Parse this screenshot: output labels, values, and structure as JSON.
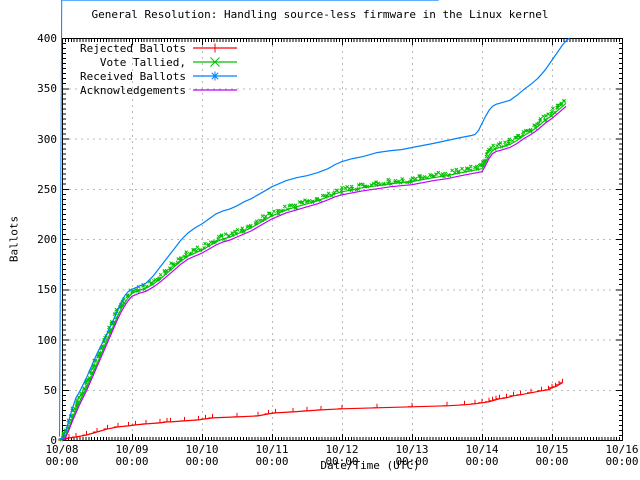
{
  "title": "General Resolution: Handling source-less firmware in the Linux kernel",
  "x_axis": {
    "label": "Date/Time (UTC)",
    "ticks": [
      {
        "date": "10/08",
        "time": "00:00"
      },
      {
        "date": "10/09",
        "time": "00:00"
      },
      {
        "date": "10/10",
        "time": "00:00"
      },
      {
        "date": "10/11",
        "time": "00:00"
      },
      {
        "date": "10/12",
        "time": "00:00"
      },
      {
        "date": "10/13",
        "time": "00:00"
      },
      {
        "date": "10/14",
        "time": "00:00"
      },
      {
        "date": "10/15",
        "time": "00:00"
      },
      {
        "date": "10/16",
        "time": "00:00"
      }
    ]
  },
  "y_axis": {
    "label": "Ballots",
    "ticks": [
      0,
      50,
      100,
      150,
      200,
      250,
      300,
      350,
      400
    ]
  },
  "colors": {
    "grid": "#b9b9b9",
    "border": "#000000",
    "background": "#ffffff"
  },
  "chart_data": {
    "type": "line",
    "title": "General Resolution: Handling source-less firmware in the Linux kernel",
    "xlabel": "Date/Time (UTC)",
    "ylabel": "Ballots",
    "x_unit": "days since 10/08 00:00 UTC",
    "xlim_days": [
      0,
      8
    ],
    "ylim": [
      0,
      400
    ],
    "grid": true,
    "legend_position": "top-left",
    "series": [
      {
        "name": "Rejected Ballots",
        "color": "#ff0000",
        "marker": "plus",
        "dense_markers": false,
        "points": [
          [
            0,
            0
          ],
          [
            0.1,
            2
          ],
          [
            0.2,
            3
          ],
          [
            0.35,
            5
          ],
          [
            0.5,
            8
          ],
          [
            0.65,
            11
          ],
          [
            0.8,
            13
          ],
          [
            0.95,
            14
          ],
          [
            1.05,
            15
          ],
          [
            1.2,
            16
          ],
          [
            1.4,
            17
          ],
          [
            1.5,
            18
          ],
          [
            1.55,
            18
          ],
          [
            1.75,
            19
          ],
          [
            1.95,
            20
          ],
          [
            2.05,
            21
          ],
          [
            2.15,
            22
          ],
          [
            2.5,
            23
          ],
          [
            2.8,
            24
          ],
          [
            2.95,
            26
          ],
          [
            3.05,
            27
          ],
          [
            3.3,
            28
          ],
          [
            3.5,
            29
          ],
          [
            3.7,
            30
          ],
          [
            4.0,
            31
          ],
          [
            4.5,
            32
          ],
          [
            5.0,
            33
          ],
          [
            5.5,
            34
          ],
          [
            5.75,
            35
          ],
          [
            5.9,
            36
          ],
          [
            6.0,
            37
          ],
          [
            6.1,
            38
          ],
          [
            6.15,
            39
          ],
          [
            6.2,
            40
          ],
          [
            6.25,
            41
          ],
          [
            6.35,
            42
          ],
          [
            6.45,
            44
          ],
          [
            6.55,
            45
          ],
          [
            6.7,
            47
          ],
          [
            6.85,
            49
          ],
          [
            6.95,
            50
          ],
          [
            7.0,
            52
          ],
          [
            7.05,
            53
          ],
          [
            7.1,
            55
          ],
          [
            7.15,
            57
          ]
        ]
      },
      {
        "name": "Vote Tallied,",
        "color": "#00c000",
        "marker": "cross",
        "dense_markers": true,
        "points": [
          [
            0,
            0
          ],
          [
            0.05,
            4
          ],
          [
            0.1,
            12
          ],
          [
            0.15,
            22
          ],
          [
            0.2,
            30
          ],
          [
            0.25,
            38
          ],
          [
            0.3,
            45
          ],
          [
            0.35,
            52
          ],
          [
            0.4,
            60
          ],
          [
            0.45,
            68
          ],
          [
            0.5,
            76
          ],
          [
            0.55,
            84
          ],
          [
            0.6,
            92
          ],
          [
            0.65,
            100
          ],
          [
            0.7,
            108
          ],
          [
            0.75,
            116
          ],
          [
            0.8,
            124
          ],
          [
            0.85,
            131
          ],
          [
            0.9,
            137
          ],
          [
            0.95,
            142
          ],
          [
            1.0,
            146
          ],
          [
            1.1,
            149
          ],
          [
            1.2,
            151
          ],
          [
            1.3,
            155
          ],
          [
            1.4,
            160
          ],
          [
            1.5,
            166
          ],
          [
            1.6,
            172
          ],
          [
            1.7,
            178
          ],
          [
            1.8,
            183
          ],
          [
            1.9,
            186
          ],
          [
            2.0,
            189
          ],
          [
            2.1,
            193
          ],
          [
            2.2,
            197
          ],
          [
            2.3,
            200
          ],
          [
            2.4,
            202
          ],
          [
            2.5,
            205
          ],
          [
            2.6,
            208
          ],
          [
            2.7,
            211
          ],
          [
            2.8,
            215
          ],
          [
            2.9,
            219
          ],
          [
            3.0,
            223
          ],
          [
            3.1,
            226
          ],
          [
            3.2,
            229
          ],
          [
            3.35,
            232
          ],
          [
            3.5,
            235
          ],
          [
            3.65,
            238
          ],
          [
            3.8,
            242
          ],
          [
            3.9,
            245
          ],
          [
            4.0,
            247
          ],
          [
            4.15,
            249
          ],
          [
            4.3,
            251
          ],
          [
            4.5,
            253
          ],
          [
            4.7,
            255
          ],
          [
            4.85,
            256
          ],
          [
            5.0,
            257
          ],
          [
            5.15,
            259
          ],
          [
            5.3,
            261
          ],
          [
            5.5,
            263
          ],
          [
            5.7,
            266
          ],
          [
            5.85,
            268
          ],
          [
            6.0,
            270
          ],
          [
            6.05,
            276
          ],
          [
            6.1,
            283
          ],
          [
            6.15,
            288
          ],
          [
            6.2,
            290
          ],
          [
            6.3,
            292
          ],
          [
            6.4,
            294
          ],
          [
            6.5,
            298
          ],
          [
            6.6,
            303
          ],
          [
            6.7,
            307
          ],
          [
            6.8,
            312
          ],
          [
            6.9,
            318
          ],
          [
            7.0,
            323
          ],
          [
            7.05,
            326
          ],
          [
            7.1,
            329
          ],
          [
            7.15,
            332
          ],
          [
            7.2,
            335
          ]
        ]
      },
      {
        "name": "Received Ballots",
        "color": "#0080ff",
        "marker": "star",
        "dense_markers": true,
        "points": [
          [
            0,
            0
          ],
          [
            0.05,
            8
          ],
          [
            0.1,
            20
          ],
          [
            0.15,
            32
          ],
          [
            0.2,
            42
          ],
          [
            0.25,
            48
          ],
          [
            0.3,
            55
          ],
          [
            0.35,
            62
          ],
          [
            0.4,
            70
          ],
          [
            0.45,
            78
          ],
          [
            0.5,
            86
          ],
          [
            0.55,
            93
          ],
          [
            0.6,
            100
          ],
          [
            0.65,
            107
          ],
          [
            0.7,
            114
          ],
          [
            0.75,
            122
          ],
          [
            0.8,
            130
          ],
          [
            0.85,
            138
          ],
          [
            0.9,
            144
          ],
          [
            0.95,
            148
          ],
          [
            1.0,
            150
          ],
          [
            1.1,
            153
          ],
          [
            1.2,
            156
          ],
          [
            1.3,
            163
          ],
          [
            1.4,
            172
          ],
          [
            1.5,
            181
          ],
          [
            1.6,
            190
          ],
          [
            1.7,
            199
          ],
          [
            1.8,
            206
          ],
          [
            1.9,
            211
          ],
          [
            2.0,
            215
          ],
          [
            2.1,
            220
          ],
          [
            2.2,
            225
          ],
          [
            2.3,
            228
          ],
          [
            2.4,
            230
          ],
          [
            2.5,
            233
          ],
          [
            2.6,
            237
          ],
          [
            2.7,
            240
          ],
          [
            2.8,
            244
          ],
          [
            2.9,
            248
          ],
          [
            3.0,
            252
          ],
          [
            3.1,
            255
          ],
          [
            3.2,
            258
          ],
          [
            3.35,
            261
          ],
          [
            3.5,
            263
          ],
          [
            3.65,
            266
          ],
          [
            3.8,
            270
          ],
          [
            3.9,
            274
          ],
          [
            4.0,
            277
          ],
          [
            4.15,
            280
          ],
          [
            4.3,
            282
          ],
          [
            4.5,
            286
          ],
          [
            4.7,
            288
          ],
          [
            4.85,
            289
          ],
          [
            5.0,
            291
          ],
          [
            5.15,
            293
          ],
          [
            5.3,
            295
          ],
          [
            5.5,
            298
          ],
          [
            5.7,
            301
          ],
          [
            5.85,
            303
          ],
          [
            5.9,
            304
          ],
          [
            5.95,
            308
          ],
          [
            6.0,
            315
          ],
          [
            6.05,
            322
          ],
          [
            6.1,
            328
          ],
          [
            6.15,
            332
          ],
          [
            6.2,
            334
          ],
          [
            6.3,
            336
          ],
          [
            6.4,
            338
          ],
          [
            6.5,
            343
          ],
          [
            6.6,
            349
          ],
          [
            6.7,
            354
          ],
          [
            6.8,
            360
          ],
          [
            6.9,
            368
          ],
          [
            7.0,
            378
          ],
          [
            7.05,
            383
          ],
          [
            7.1,
            388
          ],
          [
            7.15,
            393
          ],
          [
            7.2,
            397
          ],
          [
            7.25,
            400
          ]
        ]
      },
      {
        "name": "Acknowledgements",
        "color": "#c000ff",
        "marker": "none",
        "dense_markers": false,
        "points": [
          [
            0,
            0
          ],
          [
            0.05,
            2
          ],
          [
            0.1,
            10
          ],
          [
            0.15,
            19
          ],
          [
            0.2,
            27
          ],
          [
            0.25,
            35
          ],
          [
            0.3,
            42
          ],
          [
            0.35,
            49
          ],
          [
            0.4,
            57
          ],
          [
            0.45,
            65
          ],
          [
            0.5,
            73
          ],
          [
            0.55,
            81
          ],
          [
            0.6,
            89
          ],
          [
            0.65,
            97
          ],
          [
            0.7,
            105
          ],
          [
            0.75,
            113
          ],
          [
            0.8,
            121
          ],
          [
            0.85,
            128
          ],
          [
            0.9,
            134
          ],
          [
            0.95,
            139
          ],
          [
            1.0,
            143
          ],
          [
            1.1,
            146
          ],
          [
            1.2,
            148
          ],
          [
            1.3,
            152
          ],
          [
            1.4,
            157
          ],
          [
            1.5,
            163
          ],
          [
            1.6,
            169
          ],
          [
            1.7,
            175
          ],
          [
            1.8,
            180
          ],
          [
            1.9,
            183
          ],
          [
            2.0,
            186
          ],
          [
            2.1,
            190
          ],
          [
            2.2,
            194
          ],
          [
            2.3,
            197
          ],
          [
            2.4,
            199
          ],
          [
            2.5,
            202
          ],
          [
            2.6,
            205
          ],
          [
            2.7,
            208
          ],
          [
            2.8,
            212
          ],
          [
            2.9,
            216
          ],
          [
            3.0,
            220
          ],
          [
            3.1,
            223
          ],
          [
            3.2,
            226
          ],
          [
            3.35,
            229
          ],
          [
            3.5,
            232
          ],
          [
            3.65,
            235
          ],
          [
            3.8,
            239
          ],
          [
            3.9,
            242
          ],
          [
            4.0,
            244
          ],
          [
            4.15,
            246
          ],
          [
            4.3,
            248
          ],
          [
            4.5,
            250
          ],
          [
            4.7,
            252
          ],
          [
            4.85,
            253
          ],
          [
            5.0,
            254
          ],
          [
            5.15,
            256
          ],
          [
            5.3,
            258
          ],
          [
            5.5,
            260
          ],
          [
            5.7,
            263
          ],
          [
            5.85,
            265
          ],
          [
            6.0,
            267
          ],
          [
            6.05,
            273
          ],
          [
            6.1,
            280
          ],
          [
            6.15,
            285
          ],
          [
            6.2,
            287
          ],
          [
            6.3,
            289
          ],
          [
            6.4,
            291
          ],
          [
            6.5,
            295
          ],
          [
            6.6,
            300
          ],
          [
            6.7,
            304
          ],
          [
            6.8,
            309
          ],
          [
            6.9,
            315
          ],
          [
            7.0,
            320
          ],
          [
            7.05,
            323
          ],
          [
            7.1,
            326
          ],
          [
            7.15,
            329
          ],
          [
            7.2,
            332
          ]
        ]
      }
    ]
  }
}
